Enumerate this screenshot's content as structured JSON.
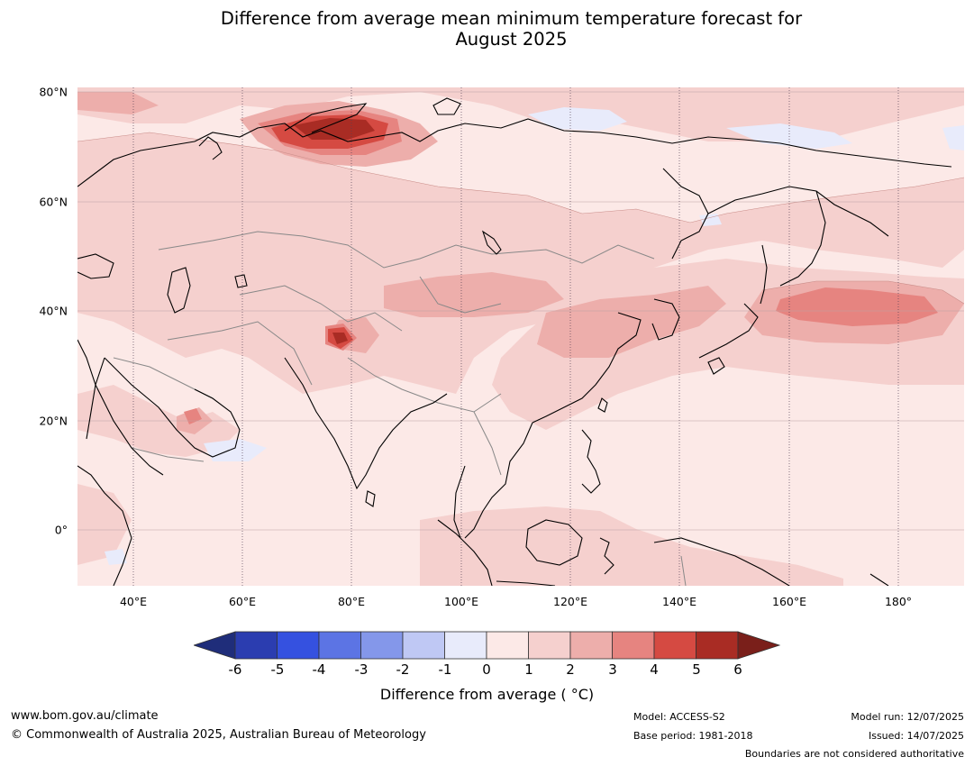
{
  "title_line1": "Difference from average mean minimum temperature forecast for",
  "title_line2": "August 2025",
  "lat_labels": [
    "80°N",
    "60°N",
    "40°N",
    "20°N",
    "0°"
  ],
  "lon_labels": [
    "40°E",
    "60°E",
    "80°E",
    "100°E",
    "120°E",
    "140°E",
    "160°E",
    "180°"
  ],
  "colorbar": {
    "ticks": [
      "-6",
      "-5",
      "-4",
      "-3",
      "-2",
      "-1",
      "0",
      "1",
      "2",
      "3",
      "4",
      "5",
      "6"
    ],
    "colors": [
      "#1f2d7a",
      "#2b3db0",
      "#3551e0",
      "#5c74e4",
      "#8497ea",
      "#bfc8f4",
      "#e8ebfb",
      "#fce9e7",
      "#f5d0ce",
      "#edaeab",
      "#e68480",
      "#d54a42",
      "#a92c24",
      "#7a1f1a"
    ],
    "label": "Difference from average ( °C)"
  },
  "footer": {
    "website": "www.bom.gov.au/climate",
    "copyright": "© Commonwealth of Australia 2025, Australian Bureau of Meteorology",
    "model": "Model: ACCESS-S2",
    "base_period": "Base period: 1981-2018",
    "model_run": "Model run: 12/07/2025",
    "issued": "Issued: 14/07/2025",
    "disclaimer": "Boundaries are not considered authoritative"
  }
}
